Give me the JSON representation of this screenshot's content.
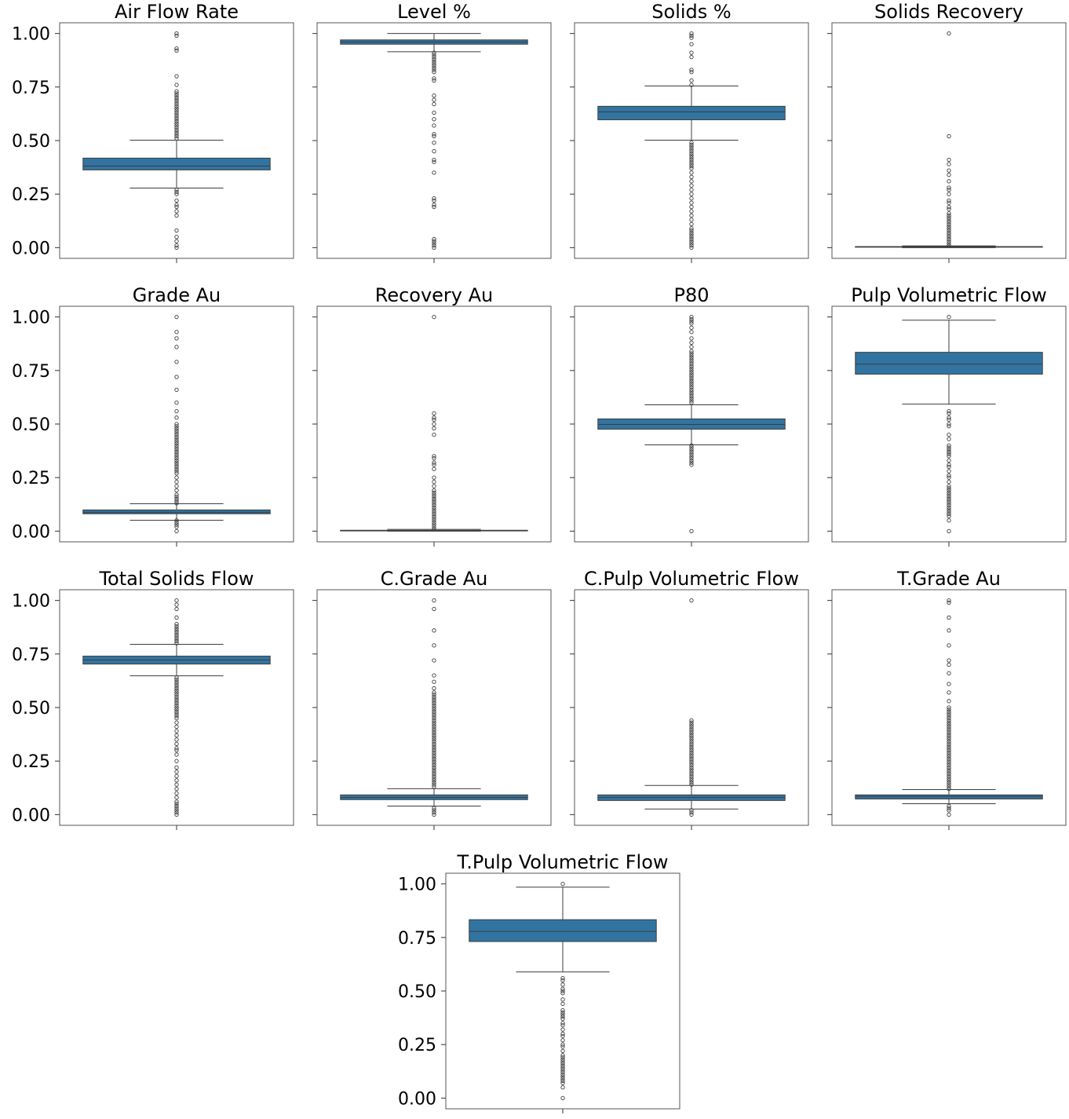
{
  "chart_data": [
    {
      "type": "box",
      "title": "Air Flow Rate",
      "color": "#3274a1",
      "ylim": [
        -0.05,
        1.05
      ],
      "yticks": [
        {
          "value": 0,
          "label": "0.00"
        },
        {
          "value": 0.25,
          "label": "0.25"
        },
        {
          "value": 0.5,
          "label": "0.50"
        },
        {
          "value": 0.75,
          "label": "0.75"
        },
        {
          "value": 1,
          "label": "1.00"
        }
      ],
      "whisker_low": 0.278,
      "q1": 0.363,
      "median": 0.381,
      "q3": 0.418,
      "whisker_high": 0.502,
      "outliers": [
        1.0,
        0.99,
        0.93,
        0.92,
        0.8,
        0.76,
        0.73,
        0.72,
        0.71,
        0.7,
        0.69,
        0.68,
        0.67,
        0.66,
        0.65,
        0.64,
        0.63,
        0.62,
        0.61,
        0.6,
        0.59,
        0.58,
        0.57,
        0.56,
        0.55,
        0.54,
        0.53,
        0.52,
        0.51,
        0.27,
        0.26,
        0.25,
        0.22,
        0.2,
        0.19,
        0.17,
        0.15,
        0.08,
        0.05,
        0.03,
        0.01,
        0.0
      ]
    },
    {
      "type": "box",
      "title": "Level %",
      "color": "#3274a1",
      "ylim": [
        -0.05,
        1.05
      ],
      "yticks": [
        0,
        0.25,
        0.5,
        0.75,
        1
      ],
      "whisker_low": 0.915,
      "q1": 0.95,
      "median": 0.96,
      "q3": 0.97,
      "whisker_high": 1.0,
      "outliers": [
        0.91,
        0.9,
        0.89,
        0.88,
        0.87,
        0.86,
        0.85,
        0.84,
        0.83,
        0.82,
        0.79,
        0.78,
        0.71,
        0.69,
        0.67,
        0.63,
        0.6,
        0.57,
        0.53,
        0.52,
        0.49,
        0.45,
        0.41,
        0.4,
        0.35,
        0.23,
        0.22,
        0.2,
        0.19,
        0.04,
        0.03,
        0.02,
        0.01,
        0.0
      ]
    },
    {
      "type": "box",
      "title": "Solids %",
      "color": "#3274a1",
      "ylim": [
        -0.05,
        1.05
      ],
      "yticks": [
        0,
        0.25,
        0.5,
        0.75,
        1
      ],
      "whisker_low": 0.502,
      "q1": 0.597,
      "median": 0.634,
      "q3": 0.66,
      "whisker_high": 0.755,
      "outliers": [
        1.0,
        0.99,
        0.98,
        0.95,
        0.91,
        0.89,
        0.83,
        0.82,
        0.78,
        0.76,
        0.49,
        0.48,
        0.47,
        0.46,
        0.45,
        0.44,
        0.43,
        0.42,
        0.41,
        0.4,
        0.39,
        0.38,
        0.37,
        0.35,
        0.33,
        0.31,
        0.29,
        0.27,
        0.25,
        0.23,
        0.21,
        0.19,
        0.17,
        0.15,
        0.13,
        0.11,
        0.09,
        0.08,
        0.07,
        0.06,
        0.05,
        0.04,
        0.03,
        0.02,
        0.01,
        0.0
      ]
    },
    {
      "type": "box",
      "title": "Solids Recovery",
      "color": "#3274a1",
      "ylim": [
        -0.05,
        1.05
      ],
      "yticks": [
        0,
        0.25,
        0.5,
        0.75,
        1
      ],
      "whisker_low": 0.0,
      "q1": 0.002,
      "median": 0.003,
      "q3": 0.005,
      "whisker_high": 0.008,
      "outliers": [
        1.0,
        0.52,
        0.41,
        0.39,
        0.36,
        0.34,
        0.31,
        0.28,
        0.27,
        0.25,
        0.22,
        0.21,
        0.19,
        0.18,
        0.16,
        0.15,
        0.14,
        0.13,
        0.12,
        0.11,
        0.1,
        0.09,
        0.08,
        0.07,
        0.06,
        0.05,
        0.04,
        0.03,
        0.02,
        0.01
      ]
    },
    {
      "type": "box",
      "title": "Grade Au",
      "color": "#3274a1",
      "ylim": [
        -0.05,
        1.05
      ],
      "yticks": [
        {
          "value": 0,
          "label": "0.00"
        },
        {
          "value": 0.25,
          "label": "0.25"
        },
        {
          "value": 0.5,
          "label": "0.50"
        },
        {
          "value": 0.75,
          "label": "0.75"
        },
        {
          "value": 1,
          "label": "1.00"
        }
      ],
      "whisker_low": 0.051,
      "q1": 0.081,
      "median": 0.088,
      "q3": 0.099,
      "whisker_high": 0.128,
      "outliers": [
        1.0,
        0.93,
        0.9,
        0.86,
        0.79,
        0.72,
        0.66,
        0.6,
        0.56,
        0.53,
        0.5,
        0.49,
        0.48,
        0.47,
        0.46,
        0.45,
        0.44,
        0.43,
        0.42,
        0.41,
        0.4,
        0.39,
        0.38,
        0.37,
        0.36,
        0.35,
        0.34,
        0.33,
        0.32,
        0.31,
        0.3,
        0.29,
        0.28,
        0.27,
        0.25,
        0.23,
        0.21,
        0.19,
        0.17,
        0.16,
        0.15,
        0.14,
        0.13,
        0.05,
        0.04,
        0.03,
        0.02,
        0.0
      ]
    },
    {
      "type": "box",
      "title": "Recovery Au",
      "color": "#3274a1",
      "ylim": [
        -0.05,
        1.05
      ],
      "yticks": [
        0,
        0.25,
        0.5,
        0.75,
        1
      ],
      "whisker_low": 0.0,
      "q1": 0.001,
      "median": 0.002,
      "q3": 0.004,
      "whisker_high": 0.008,
      "outliers": [
        1.0,
        0.55,
        0.53,
        0.52,
        0.5,
        0.48,
        0.45,
        0.35,
        0.34,
        0.32,
        0.31,
        0.29,
        0.25,
        0.23,
        0.21,
        0.19,
        0.18,
        0.17,
        0.16,
        0.15,
        0.14,
        0.13,
        0.12,
        0.11,
        0.1,
        0.09,
        0.08,
        0.07,
        0.06,
        0.05,
        0.04,
        0.03,
        0.02,
        0.01
      ]
    },
    {
      "type": "box",
      "title": "P80",
      "color": "#3274a1",
      "ylim": [
        -0.05,
        1.05
      ],
      "yticks": [
        0,
        0.25,
        0.5,
        0.75,
        1
      ],
      "whisker_low": 0.403,
      "q1": 0.476,
      "median": 0.498,
      "q3": 0.524,
      "whisker_high": 0.59,
      "outliers": [
        1.0,
        0.99,
        0.98,
        0.97,
        0.95,
        0.93,
        0.9,
        0.88,
        0.86,
        0.84,
        0.83,
        0.82,
        0.81,
        0.8,
        0.79,
        0.78,
        0.77,
        0.76,
        0.75,
        0.74,
        0.73,
        0.72,
        0.71,
        0.7,
        0.69,
        0.68,
        0.67,
        0.66,
        0.65,
        0.64,
        0.63,
        0.62,
        0.61,
        0.6,
        0.4,
        0.39,
        0.38,
        0.37,
        0.36,
        0.35,
        0.34,
        0.33,
        0.32,
        0.31,
        0.0
      ]
    },
    {
      "type": "box",
      "title": "Pulp Volumetric Flow",
      "color": "#3274a1",
      "ylim": [
        -0.05,
        1.05
      ],
      "yticks": [
        0,
        0.25,
        0.5,
        0.75,
        1
      ],
      "whisker_low": 0.593,
      "q1": 0.733,
      "median": 0.78,
      "q3": 0.835,
      "whisker_high": 0.985,
      "outliers": [
        1.0,
        0.56,
        0.55,
        0.53,
        0.52,
        0.5,
        0.49,
        0.45,
        0.43,
        0.4,
        0.39,
        0.38,
        0.37,
        0.36,
        0.35,
        0.33,
        0.31,
        0.3,
        0.28,
        0.26,
        0.25,
        0.23,
        0.21,
        0.2,
        0.19,
        0.18,
        0.17,
        0.16,
        0.15,
        0.14,
        0.13,
        0.12,
        0.11,
        0.1,
        0.09,
        0.08,
        0.07,
        0.05,
        0.0
      ]
    },
    {
      "type": "box",
      "title": "Total Solids Flow",
      "color": "#3274a1",
      "ylim": [
        -0.05,
        1.05
      ],
      "yticks": [
        {
          "value": 0,
          "label": "0.00"
        },
        {
          "value": 0.25,
          "label": "0.25"
        },
        {
          "value": 0.5,
          "label": "0.50"
        },
        {
          "value": 0.75,
          "label": "0.75"
        },
        {
          "value": 1,
          "label": "1.00"
        }
      ],
      "whisker_low": 0.648,
      "q1": 0.703,
      "median": 0.722,
      "q3": 0.74,
      "whisker_high": 0.795,
      "outliers": [
        1.0,
        0.98,
        0.96,
        0.92,
        0.89,
        0.88,
        0.87,
        0.86,
        0.85,
        0.84,
        0.83,
        0.82,
        0.81,
        0.8,
        0.64,
        0.63,
        0.62,
        0.61,
        0.6,
        0.59,
        0.58,
        0.57,
        0.56,
        0.55,
        0.54,
        0.53,
        0.52,
        0.51,
        0.5,
        0.49,
        0.48,
        0.47,
        0.46,
        0.45,
        0.43,
        0.41,
        0.39,
        0.37,
        0.35,
        0.33,
        0.31,
        0.3,
        0.28,
        0.25,
        0.22,
        0.2,
        0.18,
        0.16,
        0.14,
        0.12,
        0.1,
        0.08,
        0.06,
        0.05,
        0.04,
        0.03,
        0.02,
        0.01,
        0.0
      ]
    },
    {
      "type": "box",
      "title": "C.Grade Au",
      "color": "#3274a1",
      "ylim": [
        -0.05,
        1.05
      ],
      "yticks": [
        0,
        0.25,
        0.5,
        0.75,
        1
      ],
      "whisker_low": 0.04,
      "q1": 0.07,
      "median": 0.08,
      "q3": 0.092,
      "whisker_high": 0.121,
      "outliers": [
        1.0,
        0.96,
        0.86,
        0.79,
        0.72,
        0.65,
        0.62,
        0.59,
        0.57,
        0.56,
        0.55,
        0.54,
        0.53,
        0.52,
        0.51,
        0.5,
        0.49,
        0.48,
        0.47,
        0.46,
        0.45,
        0.44,
        0.43,
        0.42,
        0.41,
        0.4,
        0.39,
        0.38,
        0.37,
        0.36,
        0.35,
        0.34,
        0.33,
        0.32,
        0.31,
        0.3,
        0.29,
        0.28,
        0.27,
        0.26,
        0.25,
        0.24,
        0.23,
        0.22,
        0.21,
        0.2,
        0.19,
        0.18,
        0.17,
        0.16,
        0.15,
        0.14,
        0.13,
        0.03,
        0.02,
        0.01,
        0.0
      ]
    },
    {
      "type": "box",
      "title": "C.Pulp Volumetric Flow",
      "color": "#3274a1",
      "ylim": [
        -0.05,
        1.05
      ],
      "yticks": [
        0,
        0.25,
        0.5,
        0.75,
        1
      ],
      "whisker_low": 0.026,
      "q1": 0.066,
      "median": 0.08,
      "q3": 0.092,
      "whisker_high": 0.136,
      "outliers": [
        1.0,
        0.44,
        0.43,
        0.42,
        0.41,
        0.4,
        0.39,
        0.38,
        0.37,
        0.36,
        0.35,
        0.34,
        0.33,
        0.32,
        0.31,
        0.3,
        0.29,
        0.28,
        0.27,
        0.26,
        0.25,
        0.24,
        0.23,
        0.22,
        0.21,
        0.2,
        0.19,
        0.18,
        0.17,
        0.16,
        0.15,
        0.14,
        0.02,
        0.01,
        0.0
      ]
    },
    {
      "type": "box",
      "title": "T.Grade Au",
      "color": "#3274a1",
      "ylim": [
        -0.05,
        1.05
      ],
      "yticks": [
        0,
        0.25,
        0.5,
        0.75,
        1
      ],
      "whisker_low": 0.051,
      "q1": 0.073,
      "median": 0.085,
      "q3": 0.092,
      "whisker_high": 0.117,
      "outliers": [
        1.0,
        0.99,
        0.92,
        0.86,
        0.79,
        0.72,
        0.7,
        0.66,
        0.61,
        0.57,
        0.53,
        0.5,
        0.49,
        0.48,
        0.47,
        0.46,
        0.45,
        0.44,
        0.43,
        0.42,
        0.41,
        0.4,
        0.39,
        0.38,
        0.37,
        0.36,
        0.35,
        0.34,
        0.33,
        0.32,
        0.31,
        0.3,
        0.29,
        0.28,
        0.27,
        0.26,
        0.25,
        0.24,
        0.23,
        0.22,
        0.21,
        0.2,
        0.19,
        0.18,
        0.17,
        0.16,
        0.15,
        0.14,
        0.13,
        0.12,
        0.04,
        0.03,
        0.02,
        0.0
      ]
    },
    {
      "type": "box",
      "title": "T.Pulp Volumetric Flow",
      "color": "#3274a1",
      "ylim": [
        -0.05,
        1.05
      ],
      "yticks": [
        {
          "value": 0,
          "label": "0.00"
        },
        {
          "value": 0.25,
          "label": "0.25"
        },
        {
          "value": 0.5,
          "label": "0.50"
        },
        {
          "value": 0.75,
          "label": "0.75"
        },
        {
          "value": 1,
          "label": "1.00"
        }
      ],
      "whisker_low": 0.589,
      "q1": 0.731,
      "median": 0.778,
      "q3": 0.833,
      "whisker_high": 0.985,
      "outliers": [
        1.0,
        0.56,
        0.55,
        0.53,
        0.51,
        0.5,
        0.49,
        0.46,
        0.44,
        0.41,
        0.4,
        0.39,
        0.38,
        0.37,
        0.35,
        0.34,
        0.32,
        0.3,
        0.29,
        0.27,
        0.25,
        0.24,
        0.22,
        0.2,
        0.19,
        0.18,
        0.17,
        0.16,
        0.15,
        0.14,
        0.13,
        0.12,
        0.11,
        0.1,
        0.09,
        0.08,
        0.07,
        0.05,
        0.0
      ]
    }
  ]
}
